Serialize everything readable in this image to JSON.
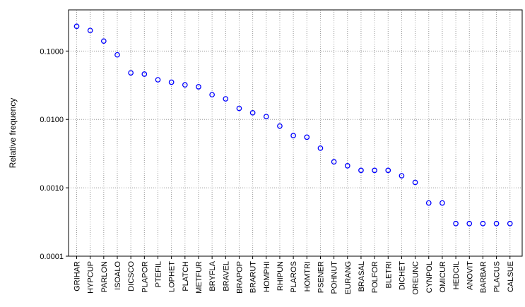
{
  "chart_data": {
    "type": "scatter",
    "title": "",
    "xlabel": "",
    "ylabel": "Relative frequency",
    "yscale": "log",
    "ylim": [
      0.0001,
      0.4
    ],
    "yticks": [
      "0.0001",
      "0.0010",
      "0.0100",
      "0.1000"
    ],
    "grid": true,
    "marker_color": "#0000ff",
    "categories": [
      "GRIHAR",
      "HYPCUP",
      "PARLON",
      "ISOALO",
      "DICSCO",
      "PLAPOR",
      "PTEFIL",
      "LOPHET",
      "PLATCH",
      "METFUR",
      "BRYFLA",
      "BRAVEL",
      "BRAPOP",
      "BRARUT",
      "HOMPHI",
      "RHIPUN",
      "PLAROS",
      "HOMTRI",
      "PSENER",
      "POHNUT",
      "EURANG",
      "BRASAL",
      "POLFOR",
      "BLETRI",
      "DICHET",
      "OREUNC",
      "CYNPOL",
      "OMICUR",
      "HEDCIL",
      "ANOVIT",
      "BARBAR",
      "PLACUS",
      "CALSUE"
    ],
    "values": [
      0.23,
      0.2,
      0.14,
      0.088,
      0.048,
      0.046,
      0.038,
      0.035,
      0.032,
      0.03,
      0.023,
      0.02,
      0.0145,
      0.0125,
      0.011,
      0.008,
      0.0058,
      0.0055,
      0.0038,
      0.0024,
      0.0021,
      0.0018,
      0.0018,
      0.0018,
      0.0015,
      0.0012,
      0.0006,
      0.0006,
      0.0003,
      0.0003,
      0.0003,
      0.0003,
      0.0003
    ]
  }
}
